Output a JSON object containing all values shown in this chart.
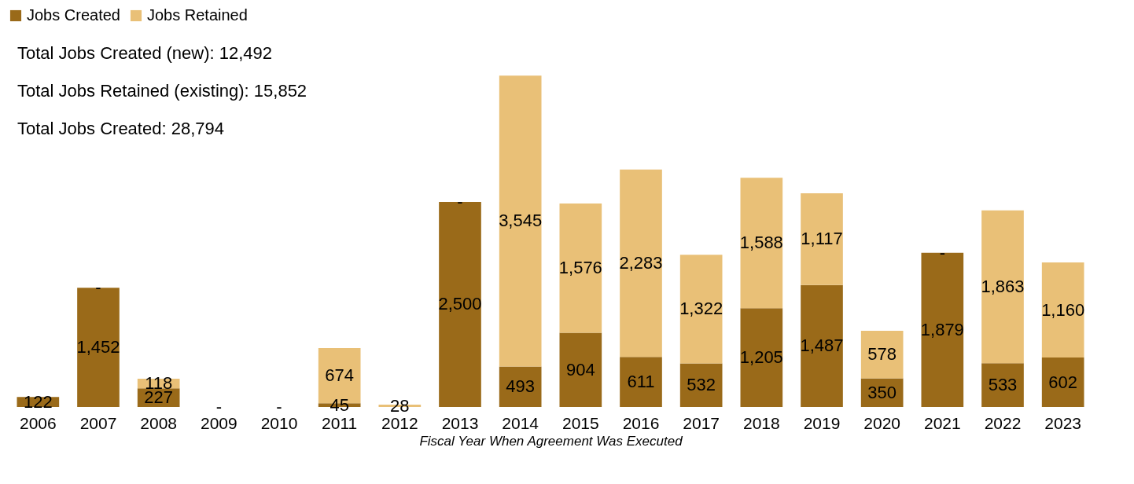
{
  "chart_data": {
    "type": "bar",
    "stacked": true,
    "xlabel": "Fiscal Year When Agreement Was Executed",
    "categories": [
      "2006",
      "2007",
      "2008",
      "2009",
      "2010",
      "2011",
      "2012",
      "2013",
      "2014",
      "2015",
      "2016",
      "2017",
      "2018",
      "2019",
      "2020",
      "2021",
      "2022",
      "2023"
    ],
    "series": [
      {
        "name": "Jobs Created",
        "color": "#9a6a19",
        "values": [
          122,
          1452,
          227,
          0,
          0,
          45,
          0,
          2500,
          493,
          904,
          611,
          532,
          1205,
          1487,
          350,
          1879,
          533,
          602
        ],
        "value_labels": [
          "122",
          "1,452",
          "227",
          "-",
          "-",
          "45",
          null,
          "2,500",
          "493",
          "904",
          "611",
          "532",
          "1,205",
          "1,487",
          "350",
          "1,879",
          "533",
          "602"
        ]
      },
      {
        "name": "Jobs Retained",
        "color": "#e9c077",
        "values": [
          0,
          0,
          118,
          0,
          0,
          674,
          28,
          0,
          3545,
          1576,
          2283,
          1322,
          1588,
          1117,
          578,
          0,
          1863,
          1160
        ],
        "value_labels": [
          null,
          "-",
          "118",
          null,
          null,
          "674",
          "28",
          "-",
          "3,545",
          "1,576",
          "2,283",
          "1,322",
          "1,588",
          "1,117",
          "578",
          "-",
          "1,863",
          "1,160"
        ]
      }
    ],
    "annotations": [
      "Total Jobs Created (new): 12,492",
      "Total Jobs Retained (existing): 15,852",
      "Total Jobs Created: 28,794"
    ],
    "legend": "top",
    "grid": false,
    "tick_labels": "x"
  }
}
